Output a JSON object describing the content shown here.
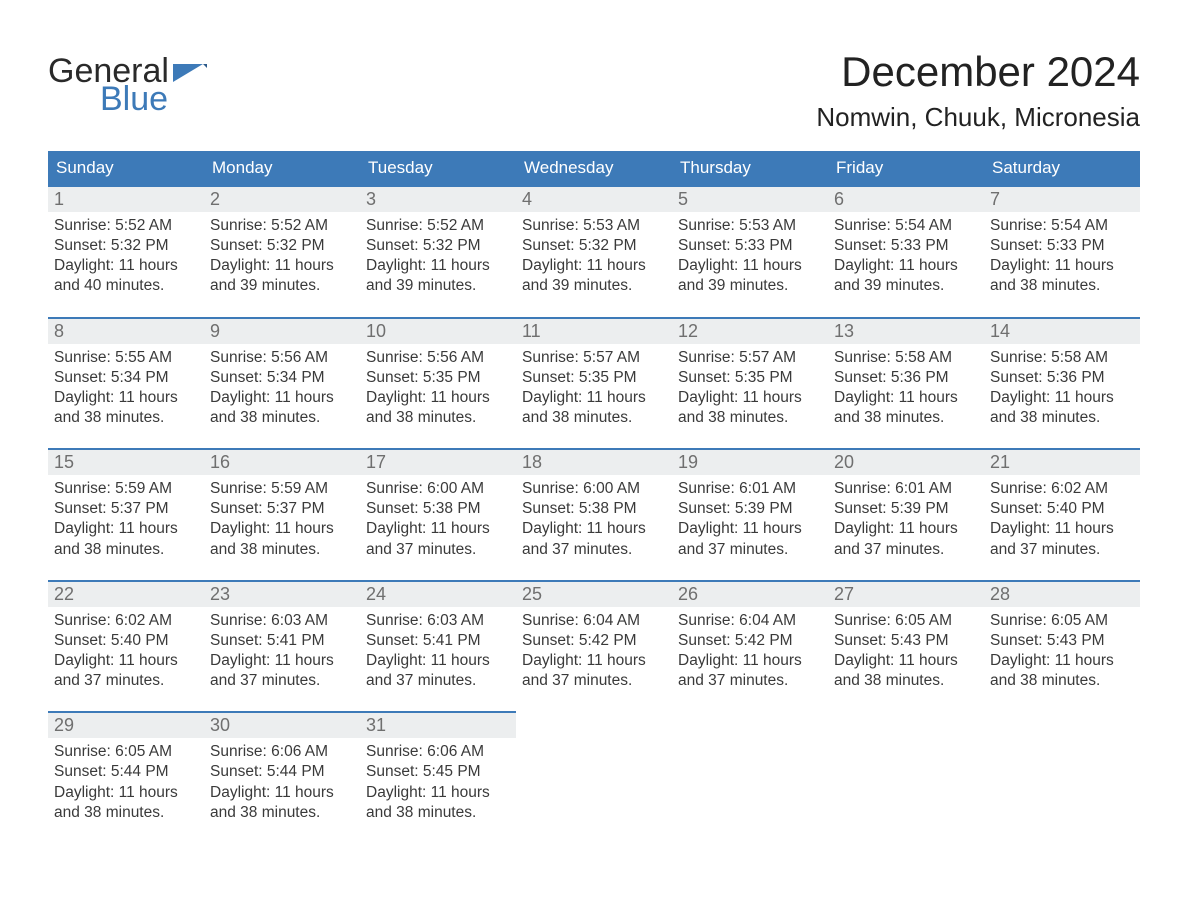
{
  "logo": {
    "text1": "General",
    "text2": "Blue"
  },
  "header": {
    "month": "December 2024",
    "location": "Nomwin, Chuuk, Micronesia"
  },
  "colors": {
    "accent": "#3d7ab8",
    "header_text": "#ffffff",
    "daynum_bg": "#eceeef",
    "daynum_text": "#6f6f6f",
    "text": "#3a3a3a",
    "background": "#ffffff"
  },
  "weekdays": [
    "Sunday",
    "Monday",
    "Tuesday",
    "Wednesday",
    "Thursday",
    "Friday",
    "Saturday"
  ],
  "labels": {
    "sunrise": "Sunrise: ",
    "sunset": "Sunset: ",
    "daylight": "Daylight: "
  },
  "start_day_index": 0,
  "days": [
    {
      "n": 1,
      "sunrise": "5:52 AM",
      "sunset": "5:32 PM",
      "daylight": "11 hours and 40 minutes."
    },
    {
      "n": 2,
      "sunrise": "5:52 AM",
      "sunset": "5:32 PM",
      "daylight": "11 hours and 39 minutes."
    },
    {
      "n": 3,
      "sunrise": "5:52 AM",
      "sunset": "5:32 PM",
      "daylight": "11 hours and 39 minutes."
    },
    {
      "n": 4,
      "sunrise": "5:53 AM",
      "sunset": "5:32 PM",
      "daylight": "11 hours and 39 minutes."
    },
    {
      "n": 5,
      "sunrise": "5:53 AM",
      "sunset": "5:33 PM",
      "daylight": "11 hours and 39 minutes."
    },
    {
      "n": 6,
      "sunrise": "5:54 AM",
      "sunset": "5:33 PM",
      "daylight": "11 hours and 39 minutes."
    },
    {
      "n": 7,
      "sunrise": "5:54 AM",
      "sunset": "5:33 PM",
      "daylight": "11 hours and 38 minutes."
    },
    {
      "n": 8,
      "sunrise": "5:55 AM",
      "sunset": "5:34 PM",
      "daylight": "11 hours and 38 minutes."
    },
    {
      "n": 9,
      "sunrise": "5:56 AM",
      "sunset": "5:34 PM",
      "daylight": "11 hours and 38 minutes."
    },
    {
      "n": 10,
      "sunrise": "5:56 AM",
      "sunset": "5:35 PM",
      "daylight": "11 hours and 38 minutes."
    },
    {
      "n": 11,
      "sunrise": "5:57 AM",
      "sunset": "5:35 PM",
      "daylight": "11 hours and 38 minutes."
    },
    {
      "n": 12,
      "sunrise": "5:57 AM",
      "sunset": "5:35 PM",
      "daylight": "11 hours and 38 minutes."
    },
    {
      "n": 13,
      "sunrise": "5:58 AM",
      "sunset": "5:36 PM",
      "daylight": "11 hours and 38 minutes."
    },
    {
      "n": 14,
      "sunrise": "5:58 AM",
      "sunset": "5:36 PM",
      "daylight": "11 hours and 38 minutes."
    },
    {
      "n": 15,
      "sunrise": "5:59 AM",
      "sunset": "5:37 PM",
      "daylight": "11 hours and 38 minutes."
    },
    {
      "n": 16,
      "sunrise": "5:59 AM",
      "sunset": "5:37 PM",
      "daylight": "11 hours and 38 minutes."
    },
    {
      "n": 17,
      "sunrise": "6:00 AM",
      "sunset": "5:38 PM",
      "daylight": "11 hours and 37 minutes."
    },
    {
      "n": 18,
      "sunrise": "6:00 AM",
      "sunset": "5:38 PM",
      "daylight": "11 hours and 37 minutes."
    },
    {
      "n": 19,
      "sunrise": "6:01 AM",
      "sunset": "5:39 PM",
      "daylight": "11 hours and 37 minutes."
    },
    {
      "n": 20,
      "sunrise": "6:01 AM",
      "sunset": "5:39 PM",
      "daylight": "11 hours and 37 minutes."
    },
    {
      "n": 21,
      "sunrise": "6:02 AM",
      "sunset": "5:40 PM",
      "daylight": "11 hours and 37 minutes."
    },
    {
      "n": 22,
      "sunrise": "6:02 AM",
      "sunset": "5:40 PM",
      "daylight": "11 hours and 37 minutes."
    },
    {
      "n": 23,
      "sunrise": "6:03 AM",
      "sunset": "5:41 PM",
      "daylight": "11 hours and 37 minutes."
    },
    {
      "n": 24,
      "sunrise": "6:03 AM",
      "sunset": "5:41 PM",
      "daylight": "11 hours and 37 minutes."
    },
    {
      "n": 25,
      "sunrise": "6:04 AM",
      "sunset": "5:42 PM",
      "daylight": "11 hours and 37 minutes."
    },
    {
      "n": 26,
      "sunrise": "6:04 AM",
      "sunset": "5:42 PM",
      "daylight": "11 hours and 37 minutes."
    },
    {
      "n": 27,
      "sunrise": "6:05 AM",
      "sunset": "5:43 PM",
      "daylight": "11 hours and 38 minutes."
    },
    {
      "n": 28,
      "sunrise": "6:05 AM",
      "sunset": "5:43 PM",
      "daylight": "11 hours and 38 minutes."
    },
    {
      "n": 29,
      "sunrise": "6:05 AM",
      "sunset": "5:44 PM",
      "daylight": "11 hours and 38 minutes."
    },
    {
      "n": 30,
      "sunrise": "6:06 AM",
      "sunset": "5:44 PM",
      "daylight": "11 hours and 38 minutes."
    },
    {
      "n": 31,
      "sunrise": "6:06 AM",
      "sunset": "5:45 PM",
      "daylight": "11 hours and 38 minutes."
    }
  ]
}
